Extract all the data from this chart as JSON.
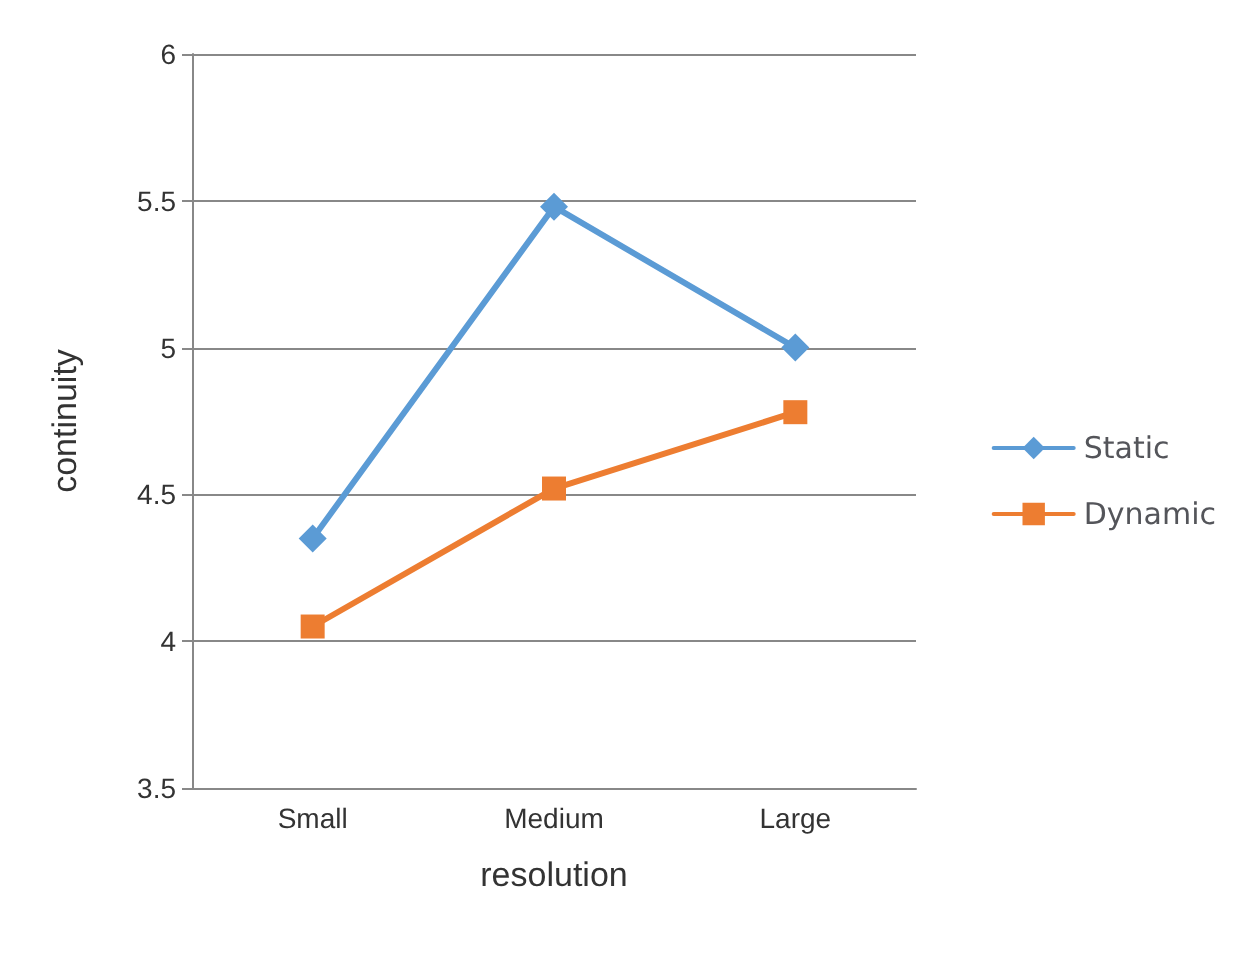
{
  "chart_data": {
    "type": "line",
    "xlabel": "resolution",
    "ylabel": "continuity",
    "categories": [
      "Small",
      "Medium",
      "Large"
    ],
    "series": [
      {
        "name": "Static",
        "color": "#5b9bd5",
        "marker": "diamond",
        "values": [
          4.35,
          5.48,
          5.0
        ]
      },
      {
        "name": "Dynamic",
        "color": "#ed7d31",
        "marker": "square",
        "values": [
          4.05,
          4.52,
          4.78
        ]
      }
    ],
    "ylim": [
      3.5,
      6
    ],
    "yticks": [
      3.5,
      4,
      4.5,
      5,
      5.5,
      6
    ],
    "grid": "y",
    "legend": "right"
  }
}
